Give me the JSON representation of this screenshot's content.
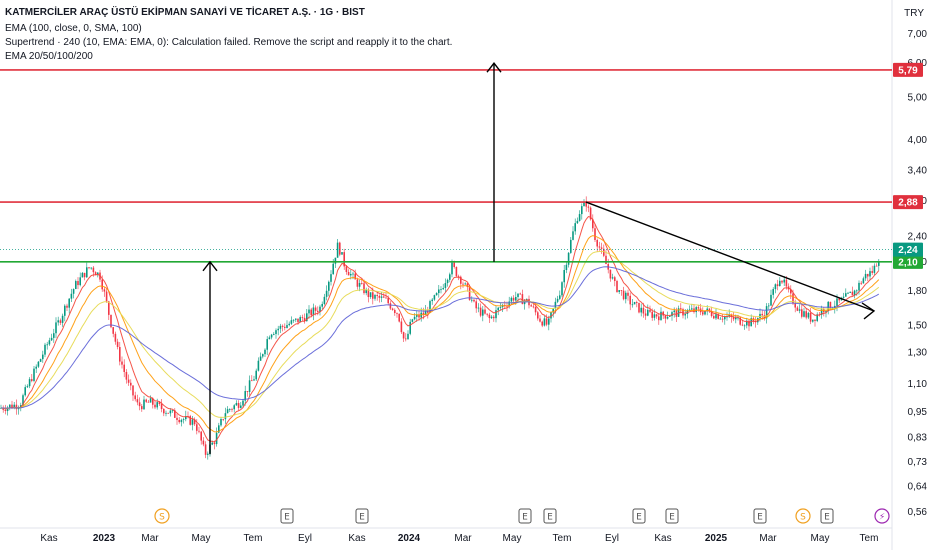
{
  "header": {
    "title": "KATMERCİLER ARAÇ ÜSTÜ EKİPMAN SANAYİ VE TİCARET A.Ş. · 1G · BIST",
    "ind1": "EMA (100, close, 0, SMA, 100)",
    "ind2": "Supertrend · 240 (10, EMA: EMA, 0): Calculation failed. Remove the script and reapply it to the chart.",
    "ind3": "EMA 20/50/100/200"
  },
  "currency": "TRY",
  "colors": {
    "resistance": "#e0303d",
    "support": "#22a834",
    "price_up": "#089981",
    "price_down": "#f23645",
    "ema20": "#f44336",
    "ema50": "#ff9800",
    "ema100": "#e6d84a",
    "ema200": "#5b5fd6",
    "last_price_badge": "#089981",
    "dividend": "#f0a020",
    "earnings": "#555555",
    "split": "#9c27b0"
  },
  "chart_data": {
    "type": "line",
    "y_scale": "log",
    "y_ticks": [
      0.56,
      0.64,
      0.73,
      0.83,
      0.95,
      1.1,
      1.3,
      1.5,
      1.8,
      2.1,
      2.4,
      2.9,
      3.4,
      4.0,
      5.0,
      6.0,
      7.0
    ],
    "x_ticks": [
      "Kas",
      "2023",
      "Mar",
      "May",
      "Tem",
      "Eyl",
      "Kas",
      "2024",
      "Mar",
      "May",
      "Tem",
      "Eyl",
      "Kas",
      "2025",
      "Mar",
      "May",
      "Tem"
    ],
    "horizontal_levels": [
      {
        "value": 5.79,
        "color": "#e0303d",
        "label": "5,79"
      },
      {
        "value": 2.88,
        "color": "#e0303d",
        "label": "2,88"
      },
      {
        "value": 2.1,
        "color": "#22a834",
        "label": "2,10"
      }
    ],
    "last_price": {
      "value": 2.24,
      "label": "2,24"
    },
    "series": [
      {
        "x": [
          "Kas",
          "2023",
          "Mar",
          "May",
          "Tem",
          "Eyl",
          "Kas",
          "2024",
          "Mar",
          "May",
          "Tem",
          "Eyl",
          "Kas",
          "2025",
          "Mar",
          "May",
          "Tem"
        ],
        "values": [
          1.0,
          2.05,
          1.15,
          0.76,
          1.0,
          1.35,
          2.2,
          1.55,
          2.05,
          1.5,
          2.9,
          1.6,
          1.62,
          1.5,
          1.95,
          1.55,
          2.24
        ]
      }
    ],
    "events": [
      {
        "type": "dividend",
        "symbol": "S",
        "x": "Mar"
      },
      {
        "type": "earnings",
        "symbol": "E",
        "x": "Tem"
      },
      {
        "type": "earnings",
        "symbol": "E",
        "x": "Kas"
      },
      {
        "type": "earnings",
        "symbol": "E",
        "x": "May"
      },
      {
        "type": "earnings",
        "symbol": "E",
        "x": "May"
      },
      {
        "type": "earnings",
        "symbol": "E",
        "x": "Eyl"
      },
      {
        "type": "earnings",
        "symbol": "E",
        "x": "Kas"
      },
      {
        "type": "earnings",
        "symbol": "E",
        "x": "Mar"
      },
      {
        "type": "dividend",
        "symbol": "S",
        "x": "May"
      },
      {
        "type": "earnings",
        "symbol": "E",
        "x": "May"
      },
      {
        "type": "split",
        "symbol": "⚡",
        "x": "Tem"
      }
    ]
  }
}
